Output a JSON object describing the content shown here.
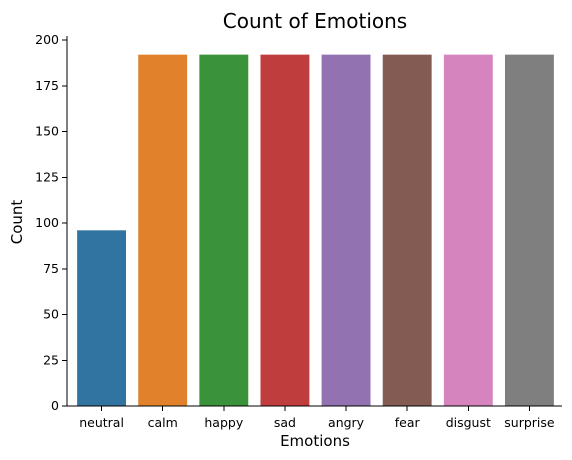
{
  "chart_data": {
    "type": "bar",
    "title": "Count of Emotions",
    "xlabel": "Emotions",
    "ylabel": "Count",
    "categories": [
      "neutral",
      "calm",
      "happy",
      "sad",
      "angry",
      "fear",
      "disgust",
      "surprise"
    ],
    "values": [
      96,
      192,
      192,
      192,
      192,
      192,
      192,
      192
    ],
    "colors": [
      "#3274a1",
      "#e1812c",
      "#3a923a",
      "#c03d3e",
      "#9372b2",
      "#845b53",
      "#d684bd",
      "#7f7f7f"
    ],
    "ylim": [
      0,
      200
    ],
    "yticks": [
      "0",
      "25",
      "50",
      "75",
      "100",
      "125",
      "150",
      "175",
      "200"
    ],
    "grid": false,
    "legend": "none"
  }
}
